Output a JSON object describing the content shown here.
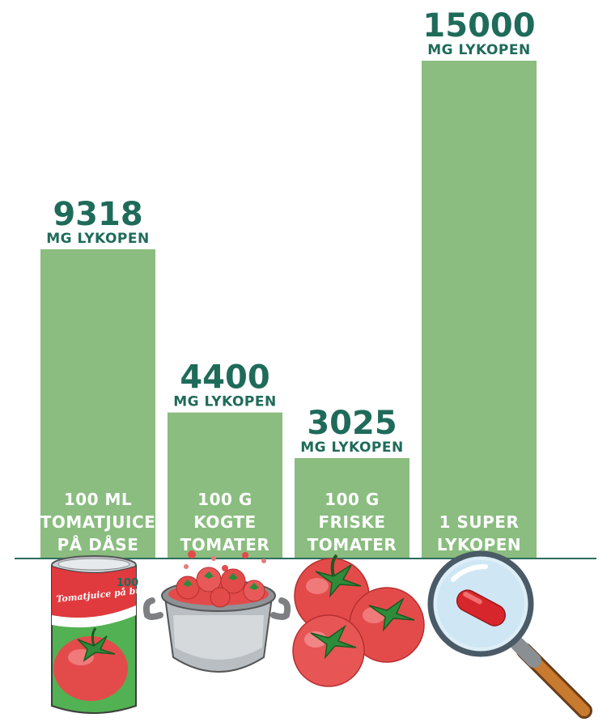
{
  "chart_data": {
    "type": "bar",
    "unit": "MG LYKOPEN",
    "ylim": [
      0,
      15000
    ],
    "colors": {
      "bar": "#8abd7f",
      "text": "#1f6b5a",
      "label": "#ffffff",
      "baseline": "#2c6e5f"
    },
    "bars": [
      {
        "value": 9318,
        "value_label": "9318",
        "label_lines": [
          "100 ML",
          "TOMATJUICE",
          "PÅ DÅSE"
        ],
        "icon": "tomato-juice-can-icon",
        "can_text": "Tomatjuice på burk",
        "can_number": "100"
      },
      {
        "value": 4400,
        "value_label": "4400",
        "label_lines": [
          "100 G",
          "KOGTE",
          "TOMATER"
        ],
        "icon": "cooking-pot-tomatoes-icon"
      },
      {
        "value": 3025,
        "value_label": "3025",
        "label_lines": [
          "100 G",
          "FRISKE",
          "TOMATER"
        ],
        "icon": "fresh-tomatoes-icon"
      },
      {
        "value": 15000,
        "value_label": "15000",
        "label_lines": [
          "1 SUPER",
          "LYKOPEN"
        ],
        "icon": "magnifier-capsule-icon"
      }
    ]
  }
}
